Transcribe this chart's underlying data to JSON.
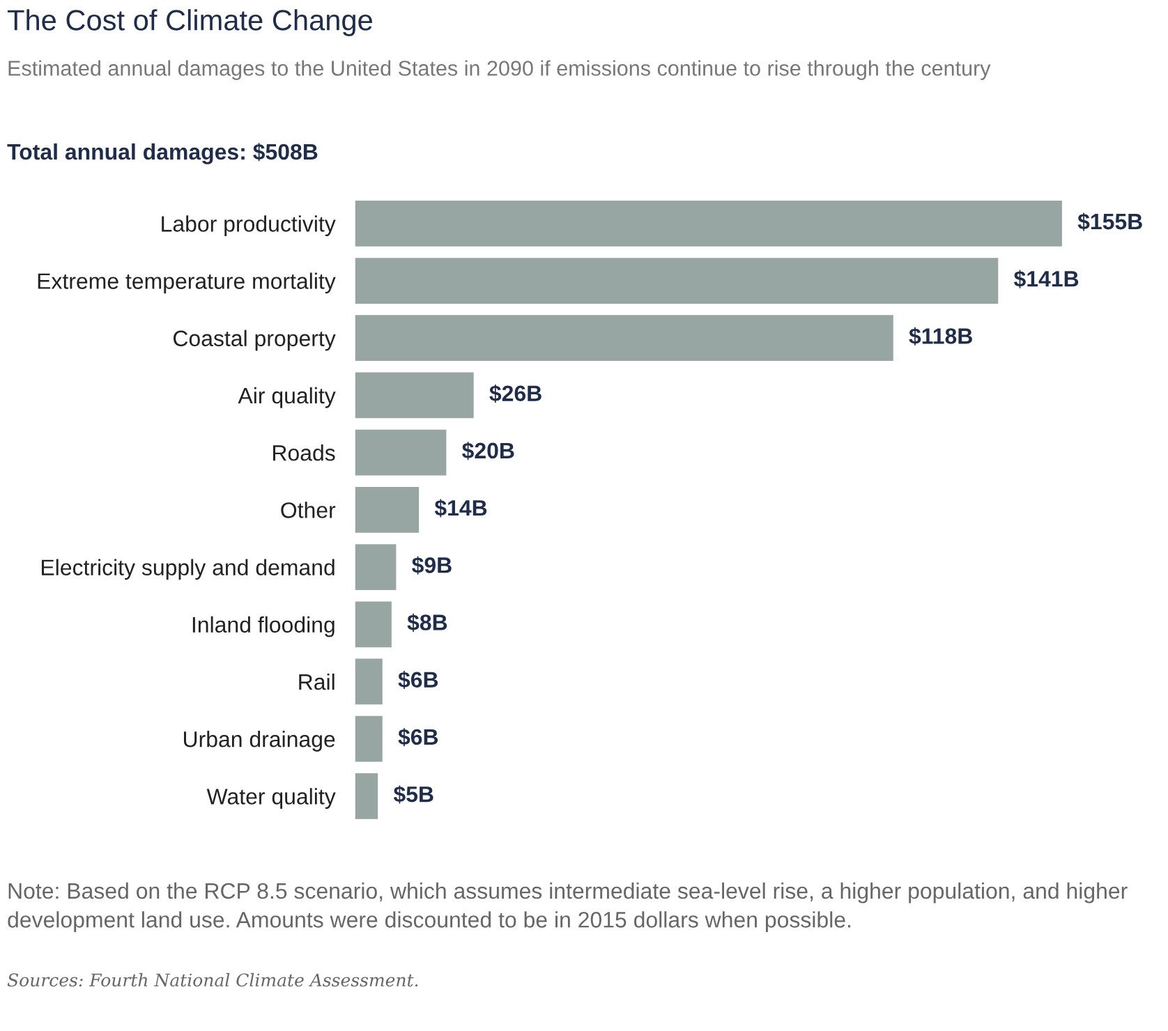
{
  "chart_data": {
    "type": "bar",
    "orientation": "horizontal",
    "title": "The Cost of Climate Change",
    "subtitle": "Estimated annual damages to the United States in 2090 if emissions continue to rise through the century",
    "categories": [
      "Labor productivity",
      "Extreme temperature mortality",
      "Coastal property",
      "Air quality",
      "Roads",
      "Other",
      "Electricity supply and demand",
      "Inland flooding",
      "Rail",
      "Urban drainage",
      "Water quality"
    ],
    "values": [
      155,
      141,
      118,
      26,
      20,
      14,
      9,
      8,
      6,
      6,
      5
    ],
    "value_labels": [
      "$155B",
      "$141B",
      "$118B",
      "$26B",
      "$20B",
      "$14B",
      "$9B",
      "$8B",
      "$6B",
      "$6B",
      "$5B"
    ],
    "color": "#97a5a3",
    "grid": false,
    "legend": false,
    "annotations": [
      "Total annual damages: $508B",
      "Note: Based on the RCP 8.5 scenario, which assumes intermediate sea-level rise, a higher population, and higher development land use. Amounts were discounted to be in 2015 dollars when possible.",
      "Sources: Fourth National Climate Assessment."
    ]
  }
}
